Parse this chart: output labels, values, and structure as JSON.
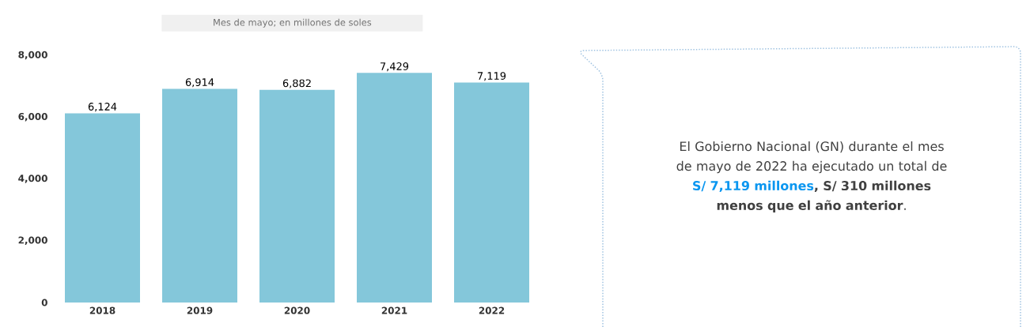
{
  "chart_data": [
    {
      "type": "bar",
      "subtitle": "Mes de mayo; en millones de soles",
      "categories": [
        "2018",
        "2019",
        "2020",
        "2021",
        "2022"
      ],
      "values": [
        6124,
        6914,
        6882,
        7429,
        7119
      ],
      "color": "#84c7da",
      "ylim": [
        0,
        8000
      ],
      "yticks": [
        {
          "value": 0,
          "label": "0"
        },
        {
          "value": 2000,
          "label": "2,000"
        },
        {
          "value": 4000,
          "label": "4,000"
        },
        {
          "value": 6000,
          "label": "6,000"
        },
        {
          "value": 8000,
          "label": "8,000"
        }
      ],
      "value_labels": [
        "6,124",
        "6,914",
        "6,882",
        "7,429",
        "7,119"
      ],
      "grid": false
    },
    {
      "type": "other",
      "color": "#0a96f0",
      "annotations": [
        "El Gobierno Nacional (GN) durante el mes de mayo de 2022 ha ejecutado un total de",
        "**S/ 7,119 millones**",
        "**, S/ 310 millones menos que el año anterior**."
      ]
    }
  ]
}
